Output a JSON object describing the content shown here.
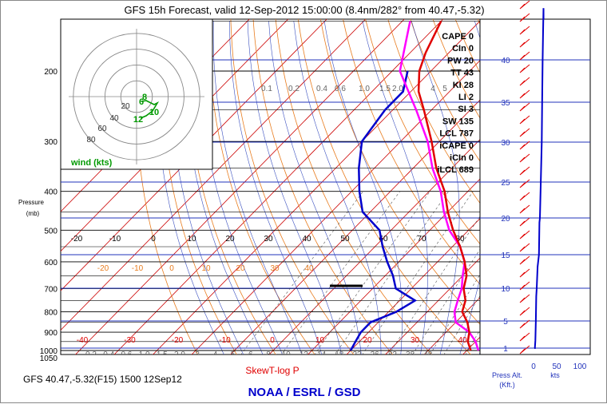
{
  "title": "GFS 15h Forecast, valid 12-Sep-2012 15:00:00 (8.4nm/282° from 40.47,-5.32)",
  "footer_left": "GFS 40.47,-5.32(F15) 1500 12Sep12",
  "footer_center": "SkewT-log P",
  "footer_org": "NOAA / ESRL / GSD",
  "colors": {
    "temperature": "#e00000",
    "dewpoint": "#0000cc",
    "virtual": "#ff00ff",
    "isobar": "#000000",
    "isotherm": "#cc0000",
    "dry_adiabat": "#e87c1e",
    "moist_adiabat": "#2040c0",
    "mixing_ratio": "#000000",
    "wind_axis": "#0000cc"
  },
  "indices": [
    {
      "name": "CAPE",
      "value": "0"
    },
    {
      "name": "CIn",
      "value": "0"
    },
    {
      "name": "PW",
      "value": "20"
    },
    {
      "name": "TT",
      "value": "43"
    },
    {
      "name": "KI",
      "value": "28"
    },
    {
      "name": "LI",
      "value": "2"
    },
    {
      "name": "SI",
      "value": "3"
    },
    {
      "name": "SW",
      "value": "135"
    },
    {
      "name": "LCL",
      "value": "787"
    },
    {
      "name": "iCAPE",
      "value": "0"
    },
    {
      "name": "iCIn",
      "value": "0"
    },
    {
      "name": "iLCL",
      "value": "689"
    }
  ],
  "hodograph": {
    "label": "wind (kts)",
    "ring_labels": [
      "20",
      "40",
      "60",
      "80"
    ],
    "point_labels": [
      "6",
      "8",
      "10",
      "12"
    ]
  },
  "chart_data": [
    {
      "type": "line",
      "name": "skewt",
      "title": "SkewT-log P",
      "ylabel": "Pressure (mb)",
      "y_ticks": [
        "200",
        "300",
        "400",
        "500",
        "600",
        "700",
        "800",
        "900",
        "1000",
        "1050"
      ],
      "temp_ticks_upper": [
        "-20",
        "-10",
        "0",
        "10",
        "20",
        "30",
        "40",
        "50",
        "60",
        "70",
        "80"
      ],
      "temp_ticks_lower": [
        "-40",
        "-30",
        "-20",
        "-10",
        "0",
        "10",
        "20",
        "30",
        "40"
      ],
      "dry_adiabat_labels": [
        "-20",
        "-10",
        "0",
        "10",
        "20",
        "30",
        "40"
      ],
      "mixing_ratio_labels_upper": [
        "0.1",
        "0.2",
        "0.4",
        "0.6",
        "1.0",
        "1.5",
        "2.0",
        "4",
        "5"
      ],
      "mixing_ratio_labels_lower": [
        "0.2",
        "0.4",
        "0.6",
        "1.0",
        "1.5",
        "2.0",
        "3",
        "4",
        "5",
        "6",
        "8",
        "10",
        "12",
        "14",
        "18",
        "22",
        "26",
        "32",
        "38",
        "48"
      ],
      "temperature": [
        [
          1000,
          31
        ],
        [
          950,
          28
        ],
        [
          900,
          26
        ],
        [
          850,
          23
        ],
        [
          800,
          19
        ],
        [
          750,
          17
        ],
        [
          700,
          13.5
        ],
        [
          650,
          11
        ],
        [
          600,
          7
        ],
        [
          550,
          2
        ],
        [
          500,
          -4
        ],
        [
          450,
          -10
        ],
        [
          400,
          -16
        ],
        [
          350,
          -24
        ],
        [
          300,
          -32
        ],
        [
          250,
          -42
        ],
        [
          225,
          -48
        ],
        [
          200,
          -53
        ],
        [
          180,
          -56
        ],
        [
          150,
          -60
        ]
      ],
      "dewpoint": [
        [
          1000,
          0
        ],
        [
          950,
          -1
        ],
        [
          900,
          -2
        ],
        [
          850,
          -2
        ],
        [
          800,
          2
        ],
        [
          750,
          4
        ],
        [
          700,
          -4
        ],
        [
          650,
          -8
        ],
        [
          600,
          -13
        ],
        [
          550,
          -18
        ],
        [
          500,
          -23
        ],
        [
          450,
          -32
        ],
        [
          400,
          -38
        ],
        [
          350,
          -44
        ],
        [
          300,
          -50
        ],
        [
          250,
          -52
        ],
        [
          225,
          -52
        ],
        [
          200,
          -56
        ]
      ],
      "virtual": [
        [
          1000,
          33
        ],
        [
          950,
          30
        ],
        [
          900,
          26
        ],
        [
          850,
          20
        ],
        [
          800,
          17
        ],
        [
          750,
          15
        ],
        [
          700,
          13
        ],
        [
          650,
          10
        ],
        [
          600,
          7
        ],
        [
          550,
          2
        ],
        [
          500,
          -5
        ],
        [
          450,
          -11
        ],
        [
          400,
          -17
        ],
        [
          350,
          -25
        ],
        [
          300,
          -33
        ],
        [
          250,
          -44
        ],
        [
          200,
          -58
        ],
        [
          150,
          -68
        ]
      ]
    },
    {
      "type": "line",
      "name": "wind-profile",
      "xlabel": "kts",
      "axis_label": "Press Alt. (Kft.)",
      "x_ticks": [
        "0",
        "50",
        "100"
      ],
      "alt_ticks": [
        "1",
        "5",
        "10",
        "15",
        "20",
        "25",
        "30",
        "35",
        "40"
      ],
      "wind_speed": [
        [
          0.3,
          2
        ],
        [
          1,
          3
        ],
        [
          2,
          4
        ],
        [
          5,
          5
        ],
        [
          8,
          6
        ],
        [
          10,
          7
        ],
        [
          12,
          9
        ],
        [
          15,
          12
        ],
        [
          18,
          13
        ],
        [
          20,
          14
        ],
        [
          25,
          16
        ],
        [
          30,
          18
        ],
        [
          35,
          19
        ],
        [
          40,
          20
        ],
        [
          44,
          21
        ],
        [
          47,
          22
        ]
      ]
    }
  ]
}
